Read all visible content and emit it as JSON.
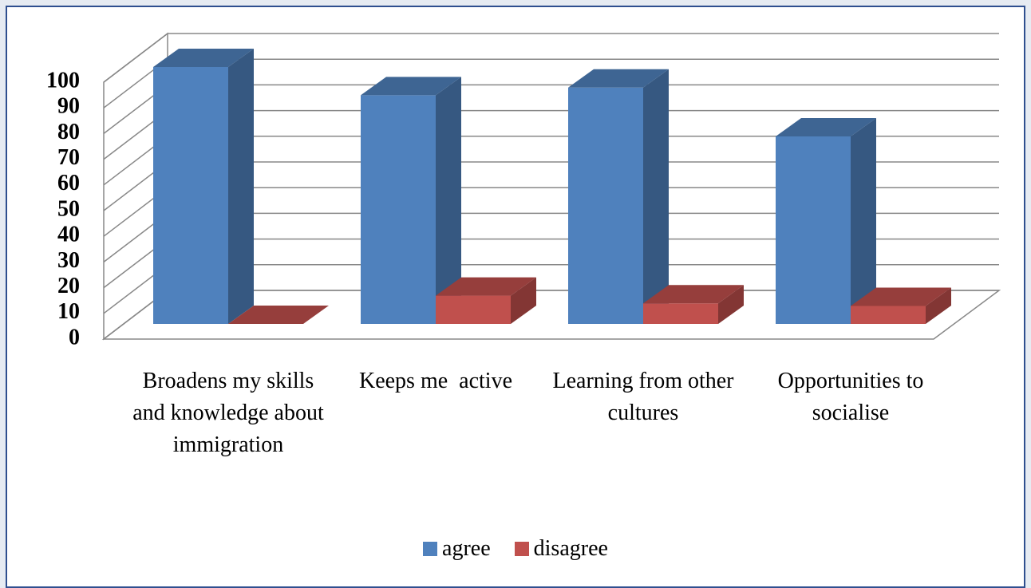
{
  "chart_data": {
    "type": "bar3d",
    "categories": [
      "Broadens my skills and knowledge about immigration",
      "Keeps me  active",
      "Learning from other cultures",
      "Opportunities to socialise"
    ],
    "series": [
      {
        "name": "agree",
        "color": "#4f81bd",
        "values": [
          100,
          89,
          92,
          73
        ]
      },
      {
        "name": "disagree",
        "color": "#c0504d",
        "values": [
          0,
          11,
          8,
          7
        ]
      }
    ],
    "ylim": [
      0,
      100
    ],
    "yticks": [
      0,
      10,
      20,
      30,
      40,
      50,
      60,
      70,
      80,
      90,
      100
    ],
    "grid": true,
    "legend": "bottom"
  }
}
